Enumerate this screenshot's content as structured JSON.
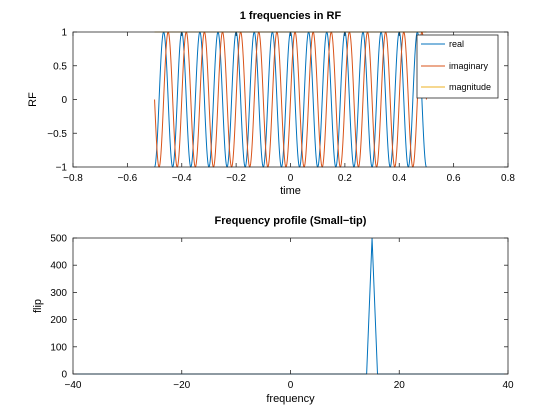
{
  "chart_data": [
    {
      "type": "line",
      "title": "1 frequencies in RF",
      "xlabel": "time",
      "ylabel": "RF",
      "xlim": [
        -0.8,
        0.8
      ],
      "ylim": [
        -1,
        1
      ],
      "xticks": [
        -0.8,
        -0.6,
        -0.4,
        -0.2,
        0,
        0.2,
        0.4,
        0.6,
        0.8
      ],
      "yticks": [
        -1,
        -0.5,
        0,
        0.5,
        1
      ],
      "xtick_labels": [
        "−0.8",
        "−0.6",
        "−0.4",
        "−0.2",
        "0",
        "0.2",
        "0.4",
        "0.6",
        "0.8"
      ],
      "ytick_labels": [
        "−1",
        "−0.5",
        "0",
        "0.5",
        "1"
      ],
      "legend_position": "top-right",
      "signal": {
        "t_start": -0.5,
        "t_end": 0.5,
        "cycles_per_unit": 15
      },
      "series": [
        {
          "name": "real",
          "color": "#0072BD",
          "formula": "cos"
        },
        {
          "name": "imaginary",
          "color": "#D95319",
          "formula": "sin"
        },
        {
          "name": "magnitude",
          "color": "#EDB120",
          "formula": "abs"
        }
      ]
    },
    {
      "type": "line",
      "title": "Frequency profile (Small−tip)",
      "xlabel": "frequency",
      "ylabel": "flip",
      "xlim": [
        -40,
        40
      ],
      "ylim": [
        0,
        500
      ],
      "xticks": [
        -40,
        -20,
        0,
        20,
        40
      ],
      "yticks": [
        0,
        100,
        200,
        300,
        400,
        500
      ],
      "xtick_labels": [
        "−40",
        "−20",
        "0",
        "20",
        "40"
      ],
      "ytick_labels": [
        "0",
        "100",
        "200",
        "300",
        "400",
        "500"
      ],
      "series": [
        {
          "color": "#0072BD",
          "x": [
            -40,
            14,
            15,
            16,
            40
          ],
          "y": [
            0,
            0,
            500,
            0,
            0
          ]
        }
      ]
    }
  ]
}
